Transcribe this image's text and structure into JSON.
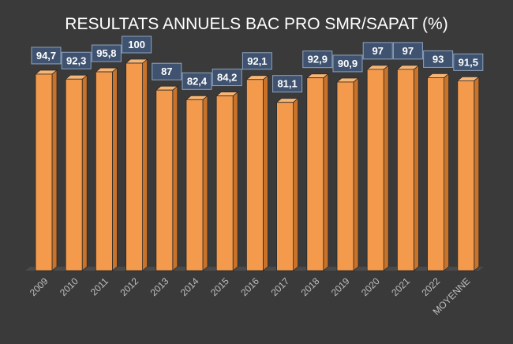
{
  "chart_data": {
    "type": "bar",
    "title": "RESULTATS ANNUELS BAC PRO  SMR/SAPAT (%)",
    "categories": [
      "2009",
      "2010",
      "2011",
      "2012",
      "2013",
      "2014",
      "2015",
      "2016",
      "2017",
      "2018",
      "2019",
      "2020",
      "2021",
      "2022",
      "MOYENNE"
    ],
    "values": [
      94.7,
      92.3,
      95.8,
      100,
      87,
      82.4,
      84.2,
      92.1,
      81.1,
      92.9,
      90.9,
      97,
      97,
      93,
      91.5
    ],
    "data_labels": [
      "94,7",
      "92,3",
      "95,8",
      "100",
      "87",
      "82,4",
      "84,2",
      "92,1",
      "81,1",
      "92,9",
      "90,9",
      "97",
      "97",
      "93",
      "91,5"
    ],
    "xlabel": "",
    "ylabel": "",
    "ylim": [
      0,
      100
    ],
    "grid": false,
    "legend": "none",
    "colors": {
      "background": "#3a3a3a",
      "bar_front": "#f39a4c",
      "bar_side": "#c9732a",
      "bar_top": "#f8b676",
      "bar_outline": "#2a2a2a",
      "label_box": "#3f5370",
      "label_box_border": "#8fa3bd",
      "label_text": "#ffffff",
      "title_text": "#ffffff",
      "tick_text": "#bfbfbf",
      "floor": "#4a4a4a"
    }
  }
}
